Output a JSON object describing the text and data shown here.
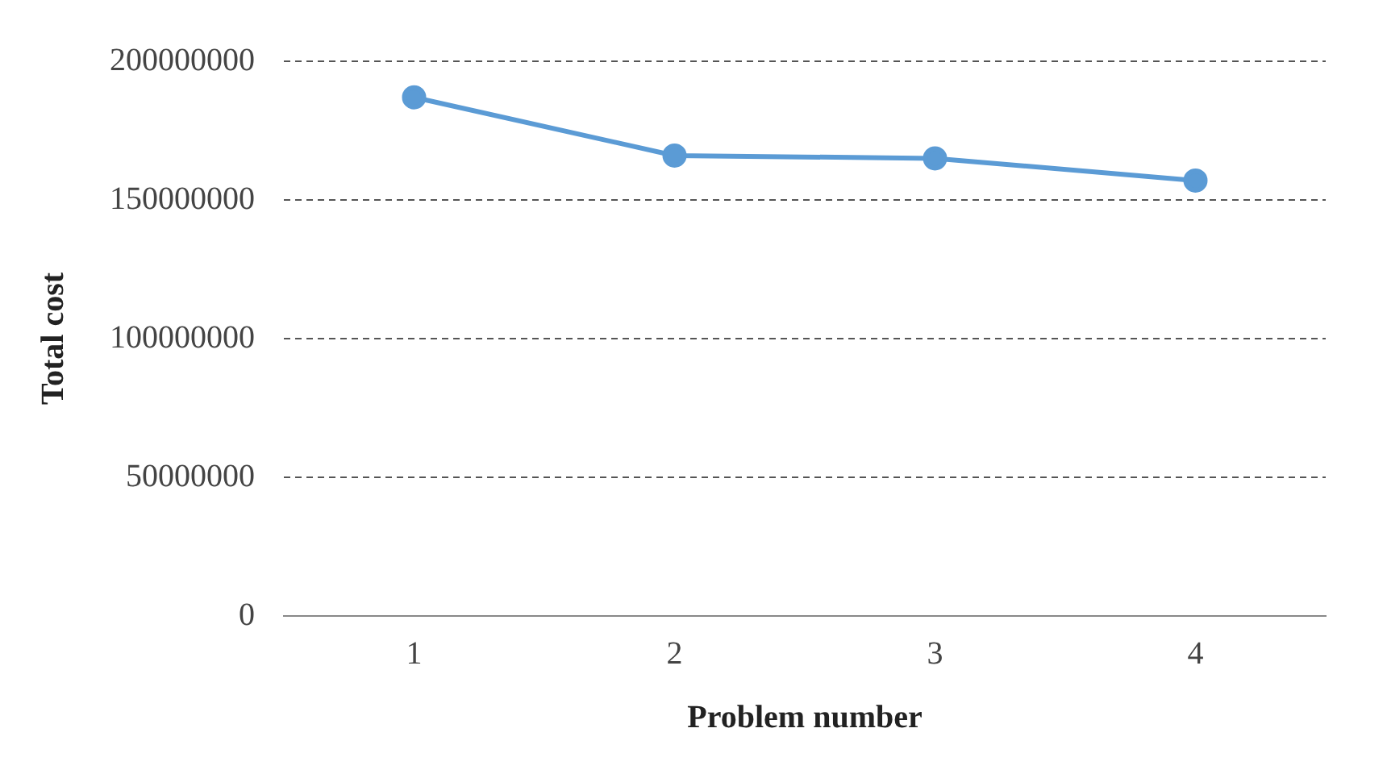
{
  "chart_data": {
    "type": "line",
    "xlabel": "Problem number",
    "ylabel": "Total cost",
    "categories": [
      "1",
      "2",
      "3",
      "4"
    ],
    "series": [
      {
        "color": "#5b9bd5",
        "values": [
          187000000,
          166000000,
          165000000,
          157000000
        ]
      }
    ],
    "ylim": [
      0,
      200000000
    ],
    "yticks": [
      0,
      50000000,
      100000000,
      150000000,
      200000000
    ],
    "grid": "y",
    "marker": "circle",
    "line_style": "solid",
    "legend": false
  }
}
